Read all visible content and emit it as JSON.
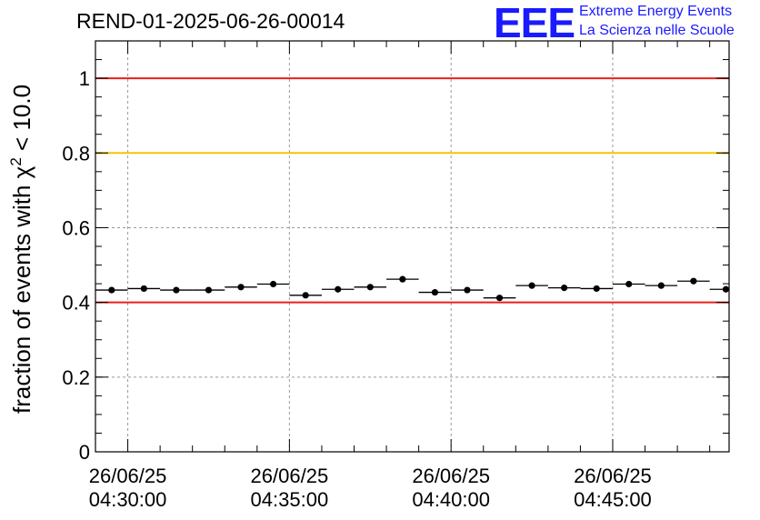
{
  "chart_data": {
    "type": "scatter",
    "title": "REND-01-2025-06-26-00014",
    "xlabel": "",
    "ylabel_prefix": "fraction of events with ",
    "ylabel_symbol": "χ",
    "ylabel_power": "2",
    "ylabel_suffix": " < 10.0",
    "ylim": [
      0,
      1.1
    ],
    "x_minutes_range": [
      -1,
      18.6
    ],
    "y_ticks": [
      {
        "value": 0,
        "label": "0"
      },
      {
        "value": 0.2,
        "label": "0.2"
      },
      {
        "value": 0.4,
        "label": "0.4"
      },
      {
        "value": 0.6,
        "label": "0.6"
      },
      {
        "value": 0.8,
        "label": "0.8"
      },
      {
        "value": 1.0,
        "label": "1"
      }
    ],
    "x_ticks": [
      {
        "minute": 0,
        "date": "26/06/25",
        "time": "04:30:00"
      },
      {
        "minute": 5,
        "date": "26/06/25",
        "time": "04:35:00"
      },
      {
        "minute": 10,
        "date": "26/06/25",
        "time": "04:40:00"
      },
      {
        "minute": 15,
        "date": "26/06/25",
        "time": "04:45:00"
      }
    ],
    "reference_lines": [
      {
        "value": 1.0,
        "color": "#e8201c"
      },
      {
        "value": 0.8,
        "color": "#f5c400"
      },
      {
        "value": 0.4,
        "color": "#e8201c"
      }
    ],
    "bin_width_minutes": 1,
    "points": [
      {
        "x": -0.5,
        "y": 0.433
      },
      {
        "x": 0.5,
        "y": 0.437
      },
      {
        "x": 1.5,
        "y": 0.433
      },
      {
        "x": 2.5,
        "y": 0.433
      },
      {
        "x": 3.5,
        "y": 0.441
      },
      {
        "x": 4.5,
        "y": 0.449
      },
      {
        "x": 5.5,
        "y": 0.419
      },
      {
        "x": 6.5,
        "y": 0.435
      },
      {
        "x": 7.5,
        "y": 0.441
      },
      {
        "x": 8.5,
        "y": 0.462
      },
      {
        "x": 9.5,
        "y": 0.427
      },
      {
        "x": 10.5,
        "y": 0.433
      },
      {
        "x": 11.5,
        "y": 0.412
      },
      {
        "x": 12.5,
        "y": 0.445
      },
      {
        "x": 13.5,
        "y": 0.439
      },
      {
        "x": 14.5,
        "y": 0.437
      },
      {
        "x": 15.5,
        "y": 0.449
      },
      {
        "x": 16.5,
        "y": 0.445
      },
      {
        "x": 17.5,
        "y": 0.457
      },
      {
        "x": 18.5,
        "y": 0.435
      }
    ],
    "marker_color": "#000000"
  },
  "logo": {
    "mark": "EEE",
    "line1": "Extreme Energy Events",
    "line2": "La Scienza nelle Scuole",
    "color": "#1a1aff"
  }
}
